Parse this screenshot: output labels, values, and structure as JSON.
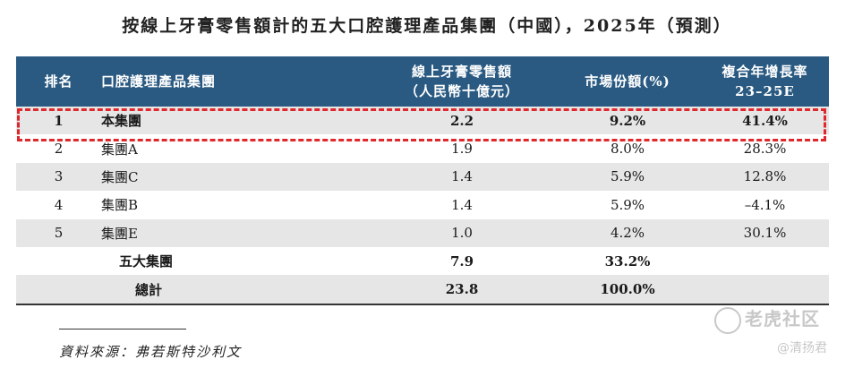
{
  "title": "按線上牙膏零售額計的五大口腔護理產品集團（中國），2025年（預測）",
  "header": {
    "rank": "排名",
    "group": "口腔護理產品集團",
    "sales_line1": "線上牙膏零售額",
    "sales_line2": "（人民幣十億元）",
    "share": "市場份額(%)",
    "cagr_line1": "複合年增長率",
    "cagr_line2": "23–25E"
  },
  "rows": [
    {
      "rank": "1",
      "group": "本集團",
      "sales": "2.2",
      "share": "9.2%",
      "cagr": "41.4%"
    },
    {
      "rank": "2",
      "group": "集團A",
      "sales": "1.9",
      "share": "8.0%",
      "cagr": "28.3%"
    },
    {
      "rank": "3",
      "group": "集團C",
      "sales": "1.4",
      "share": "5.9%",
      "cagr": "12.8%"
    },
    {
      "rank": "4",
      "group": "集團B",
      "sales": "1.4",
      "share": "5.9%",
      "cagr": "–4.1%"
    },
    {
      "rank": "5",
      "group": "集團E",
      "sales": "1.0",
      "share": "4.2%",
      "cagr": "30.1%"
    }
  ],
  "top5": {
    "label": "五大集團",
    "sales": "7.9",
    "share": "33.2%"
  },
  "total": {
    "label": "總計",
    "sales": "23.8",
    "share": "100.0%"
  },
  "source": "資料來源：弗若斯特沙利文",
  "watermark": {
    "brand": "老虎社区",
    "user": "@清扬君"
  },
  "colors": {
    "header_bg": "#2a5a82",
    "highlight": "#e0272b",
    "shade": "#e6e6e6"
  }
}
